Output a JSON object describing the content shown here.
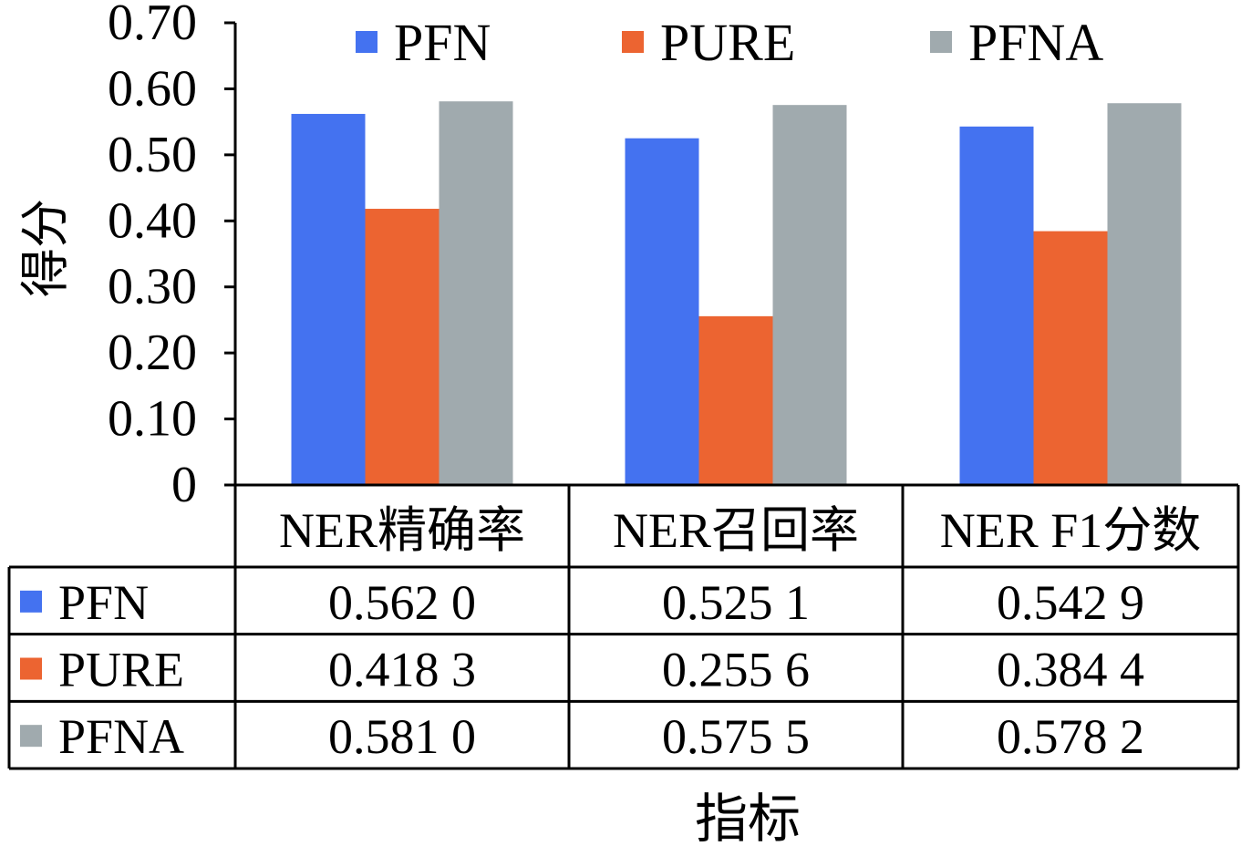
{
  "chart_data": {
    "type": "bar",
    "categories": [
      "NER精确率",
      "NER召回率",
      "NER F1分数"
    ],
    "series": [
      {
        "name": "PFN",
        "color": "#4472f0",
        "values": [
          0.562,
          0.5251,
          0.5429
        ],
        "labels": [
          "0.562 0",
          "0.525 1",
          "0.542 9"
        ]
      },
      {
        "name": "PURE",
        "color": "#ec6431",
        "values": [
          0.4183,
          0.2556,
          0.3844
        ],
        "labels": [
          "0.418 3",
          "0.255 6",
          "0.384 4"
        ]
      },
      {
        "name": "PFNA",
        "color": "#a0aaae",
        "values": [
          0.581,
          0.5755,
          0.5782
        ],
        "labels": [
          "0.581 0",
          "0.575 5",
          "0.578 2"
        ]
      }
    ],
    "ylim": [
      0,
      0.7
    ],
    "yticks": [
      0,
      0.1,
      0.2,
      0.3,
      0.4,
      0.5,
      0.6,
      0.7
    ],
    "ytick_labels": [
      "0",
      "0.10",
      "0.20",
      "0.30",
      "0.40",
      "0.50",
      "0.60",
      "0.70"
    ],
    "ylabel": "得分",
    "xlabel": "指标",
    "legend_position": "top",
    "grid": false,
    "data_table": true
  }
}
